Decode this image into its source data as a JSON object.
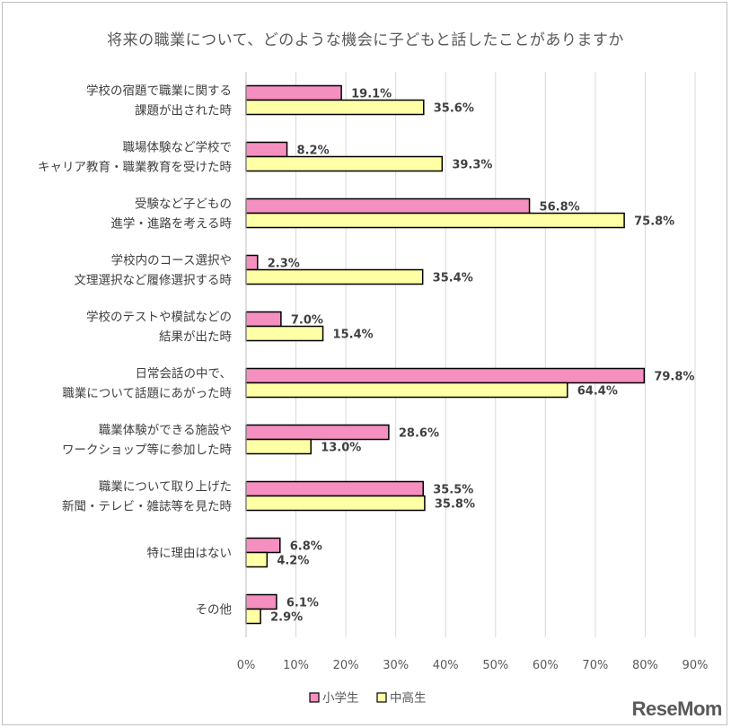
{
  "chart_data": {
    "type": "bar",
    "orientation": "horizontal",
    "title": "将来の職業について、どのような機会に子どもと話したことがありますか",
    "categories": [
      [
        "学校の宿題で職業に関する",
        "課題が出された時"
      ],
      [
        "職場体験など学校で",
        "キャリア教育・職業教育を受けた時"
      ],
      [
        "受験など子どもの",
        "進学・進路を考える時"
      ],
      [
        "学校内のコース選択や",
        "文理選択など履修選択する時"
      ],
      [
        "学校のテストや模試などの",
        "結果が出た時"
      ],
      [
        "日常会話の中で、",
        "職業について話題にあがった時"
      ],
      [
        "職業体験ができる施設や",
        "ワークショップ等に参加した時"
      ],
      [
        "職業について取り上げた",
        "新聞・テレビ・雑誌等を見た時"
      ],
      [
        "特に理由はない"
      ],
      [
        "その他"
      ]
    ],
    "series": [
      {
        "name": "小学生",
        "color": "#f58fc0",
        "values": [
          19.1,
          8.2,
          56.8,
          2.3,
          7.0,
          79.8,
          28.6,
          35.5,
          6.8,
          6.1
        ]
      },
      {
        "name": "中高生",
        "color": "#ffffa6",
        "values": [
          35.6,
          39.3,
          75.8,
          35.4,
          15.4,
          64.4,
          13.0,
          35.8,
          4.2,
          2.9
        ]
      }
    ],
    "xlim": [
      0,
      90
    ],
    "xticks": [
      "0%",
      "10%",
      "20%",
      "30%",
      "40%",
      "50%",
      "60%",
      "70%",
      "80%",
      "90%"
    ],
    "grid": true,
    "legend_position": "bottom"
  },
  "watermark": "ReseMom"
}
